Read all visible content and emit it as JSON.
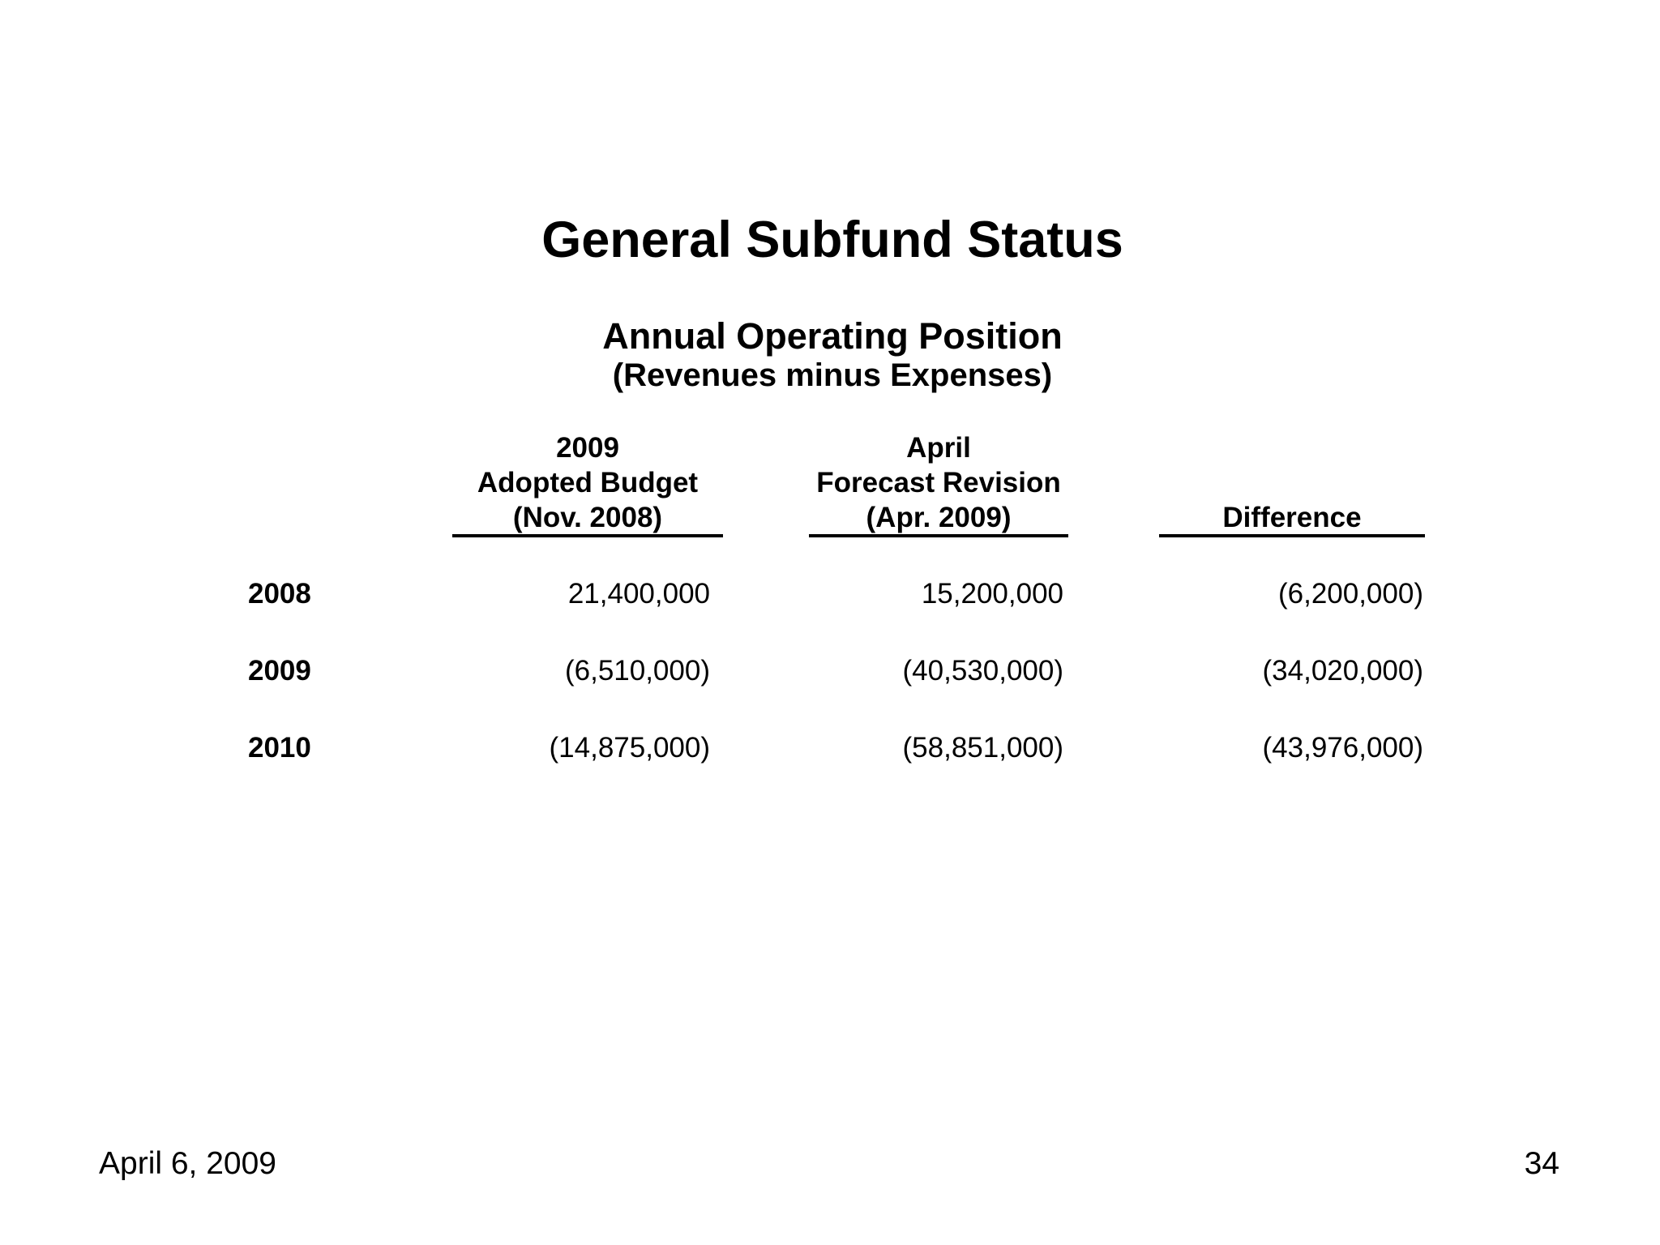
{
  "slide": {
    "title": "General Subfund Status",
    "subtitle": "Annual Operating Position",
    "subtitle_note": "(Revenues minus Expenses)",
    "table": {
      "headers": [
        [
          "2009",
          "Adopted Budget",
          "(Nov. 2008)"
        ],
        [
          "April",
          "Forecast Revision",
          "(Apr. 2009)"
        ],
        [
          "Difference"
        ]
      ],
      "rows": [
        {
          "year": "2008",
          "values": [
            "21,400,000",
            "15,200,000",
            "(6,200,000)"
          ]
        },
        {
          "year": "2009",
          "values": [
            "(6,510,000)",
            "(40,530,000)",
            "(34,020,000)"
          ]
        },
        {
          "year": "2010",
          "values": [
            "(14,875,000)",
            "(58,851,000)",
            "(43,976,000)"
          ]
        }
      ]
    },
    "footer": {
      "date": "April 6, 2009",
      "page_number": "34"
    }
  },
  "chart_data": {
    "type": "table",
    "title": "General Subfund Status — Annual Operating Position (Revenues minus Expenses)",
    "columns": [
      "Year",
      "2009 Adopted Budget (Nov. 2008)",
      "April Forecast Revision (Apr. 2009)",
      "Difference"
    ],
    "rows": [
      [
        "2008",
        "21,400,000",
        "15,200,000",
        "(6,200,000)"
      ],
      [
        "2009",
        "(6,510,000)",
        "(40,530,000)",
        "(34,020,000)"
      ],
      [
        "2010",
        "(14,875,000)",
        "(58,851,000)",
        "(43,976,000)"
      ]
    ]
  }
}
